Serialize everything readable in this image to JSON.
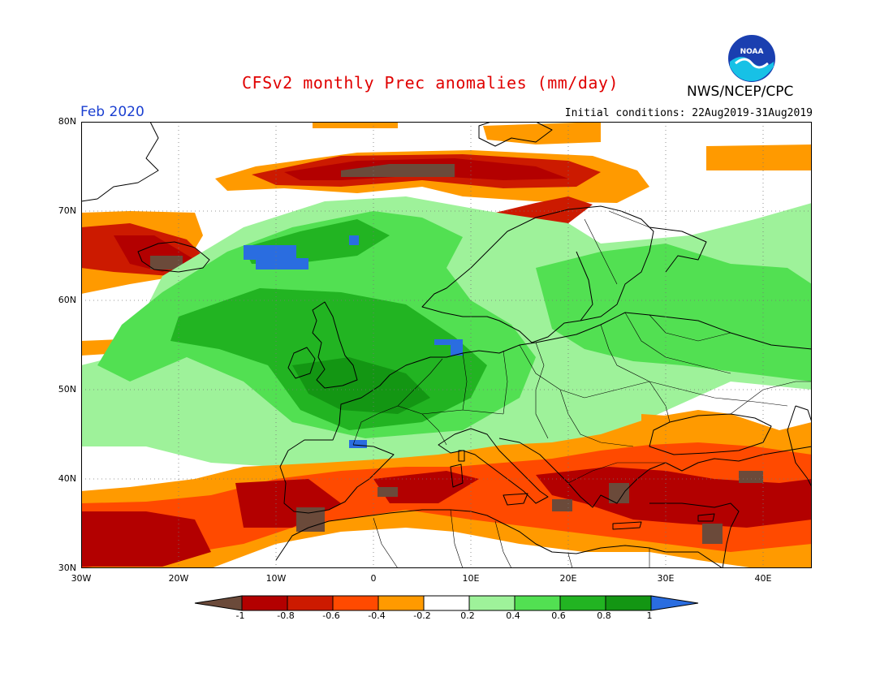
{
  "header": {
    "title": "CFSv2 monthly Prec anomalies (mm/day)",
    "agency": "NWS/NCEP/CPC",
    "logo_text": "NOAA",
    "month": "Feb 2020",
    "initial_conditions": "Initial conditions: 22Aug2019-31Aug2019"
  },
  "map": {
    "lat_labels": [
      "80N",
      "70N",
      "60N",
      "50N",
      "40N",
      "30N"
    ],
    "lon_labels": [
      "30W",
      "20W",
      "10W",
      "0",
      "10E",
      "20E",
      "30E",
      "40E"
    ],
    "lat_range": [
      30,
      80
    ],
    "lon_range": [
      -30,
      45
    ],
    "grid": true,
    "grid_style": "dotted"
  },
  "colorbar": {
    "labels": [
      "-1",
      "-0.8",
      "-0.6",
      "-0.4",
      "-0.2",
      "0.2",
      "0.4",
      "0.6",
      "0.8",
      "1"
    ],
    "colors": [
      "#6b4a3a",
      "#b30000",
      "#cc1a00",
      "#ff4a00",
      "#ff9a00",
      "#ffffff",
      "#9ef29a",
      "#52e052",
      "#22b422",
      "#139613",
      "#2a6de0"
    ]
  },
  "colors": {
    "title": "#e00000",
    "month": "#1a3fd1",
    "ocean_fill": "#ffffff",
    "coast": "#000000"
  }
}
